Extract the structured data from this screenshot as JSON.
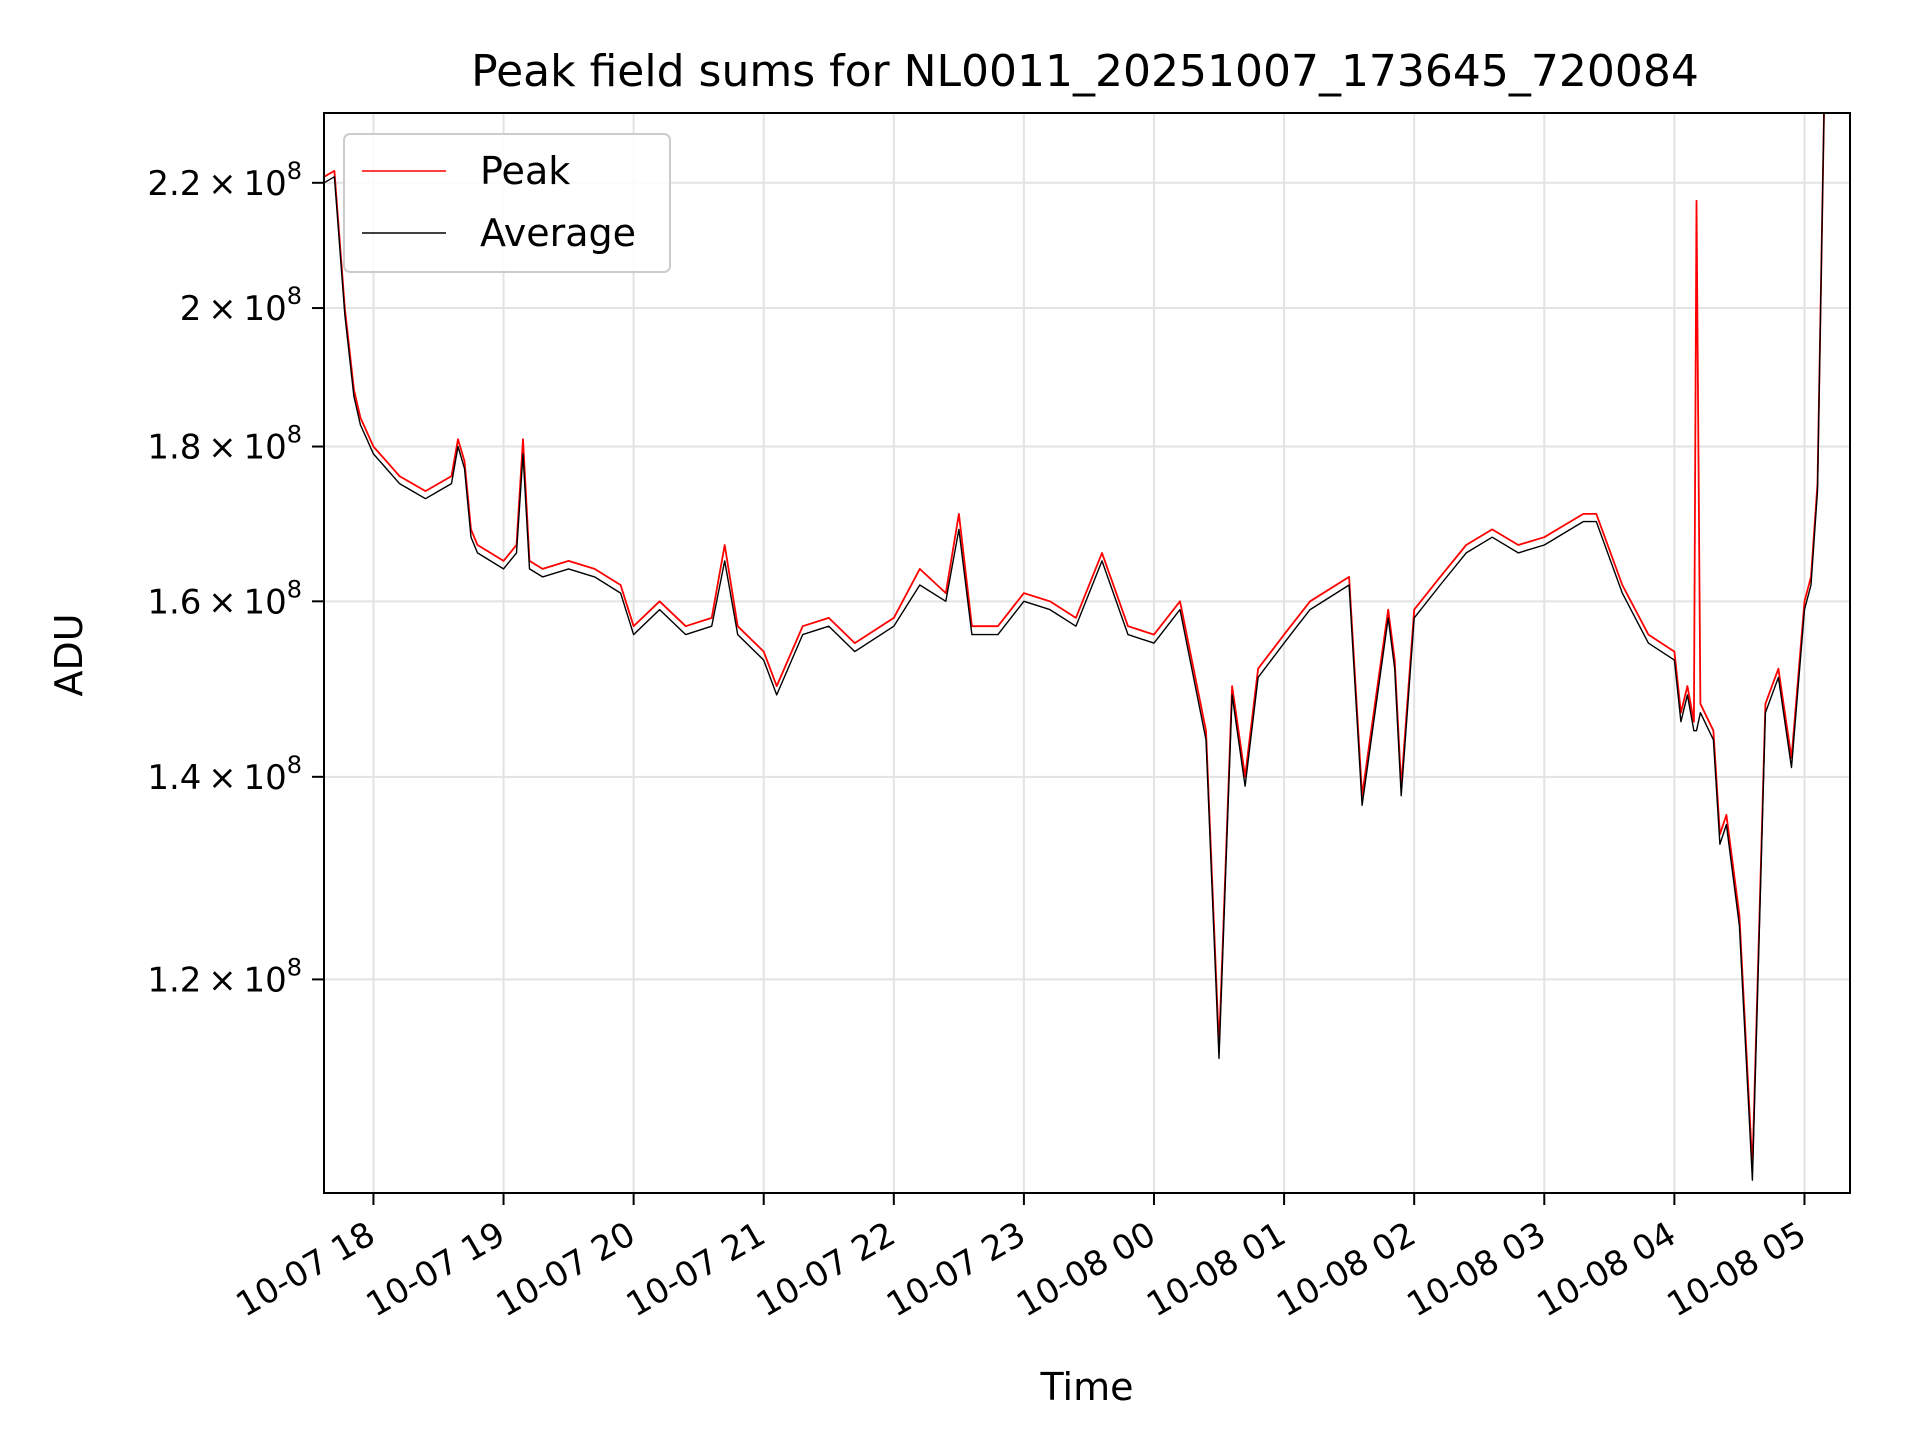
{
  "chart_data": {
    "type": "line",
    "title": "Peak field sums for NL0011_20251007_173645_720084",
    "xlabel": "Time",
    "ylabel": "ADU",
    "yscale": "log",
    "ylim": [
      102000000,
      232000000
    ],
    "xlim": [
      17.62,
      29.35
    ],
    "grid": true,
    "legend_position": "top-left",
    "x_ticks": [
      {
        "value": 18,
        "label": "10-07 18"
      },
      {
        "value": 19,
        "label": "10-07 19"
      },
      {
        "value": 20,
        "label": "10-07 20"
      },
      {
        "value": 21,
        "label": "10-07 21"
      },
      {
        "value": 22,
        "label": "10-07 22"
      },
      {
        "value": 23,
        "label": "10-07 23"
      },
      {
        "value": 24,
        "label": "10-08 00"
      },
      {
        "value": 25,
        "label": "10-08 01"
      },
      {
        "value": 26,
        "label": "10-08 02"
      },
      {
        "value": 27,
        "label": "10-08 03"
      },
      {
        "value": 28,
        "label": "10-08 04"
      },
      {
        "value": 29,
        "label": "10-08 05"
      }
    ],
    "y_ticks": [
      {
        "value": 120000000,
        "mantissa": "1.2",
        "exp": "8"
      },
      {
        "value": 140000000,
        "mantissa": "1.4",
        "exp": "8"
      },
      {
        "value": 160000000,
        "mantissa": "1.6",
        "exp": "8"
      },
      {
        "value": 180000000,
        "mantissa": "1.8",
        "exp": "8"
      },
      {
        "value": 200000000,
        "mantissa": "2",
        "exp": "8"
      },
      {
        "value": 220000000,
        "mantissa": "2.2",
        "exp": "8"
      }
    ],
    "tick_base": "10",
    "series": [
      {
        "name": "Peak",
        "color": "#ff0000",
        "x": [
          17.62,
          17.7,
          17.75,
          17.78,
          17.85,
          17.9,
          17.95,
          18.0,
          18.1,
          18.2,
          18.3,
          18.4,
          18.5,
          18.6,
          18.65,
          18.7,
          18.75,
          18.8,
          18.9,
          19.0,
          19.1,
          19.15,
          19.2,
          19.3,
          19.5,
          19.7,
          19.9,
          20.0,
          20.2,
          20.4,
          20.6,
          20.7,
          20.8,
          21.0,
          21.1,
          21.3,
          21.5,
          21.7,
          22.0,
          22.2,
          22.4,
          22.5,
          22.6,
          22.8,
          23.0,
          23.2,
          23.4,
          23.6,
          23.8,
          24.0,
          24.2,
          24.4,
          24.5,
          24.6,
          24.7,
          24.8,
          25.0,
          25.1,
          25.2,
          25.5,
          25.6,
          25.8,
          25.85,
          25.9,
          26.0,
          26.2,
          26.4,
          26.6,
          26.8,
          27.0,
          27.2,
          27.3,
          27.4,
          27.6,
          27.8,
          28.0,
          28.05,
          28.1,
          28.15,
          28.17,
          28.2,
          28.3,
          28.35,
          28.4,
          28.5,
          28.6,
          28.7,
          28.8,
          28.9,
          29.0,
          29.05,
          29.1,
          29.15
        ],
        "values": [
          221000000,
          222000000,
          208000000,
          200000000,
          188000000,
          184000000,
          182000000,
          180000000,
          178000000,
          176000000,
          175000000,
          174000000,
          175000000,
          176000000,
          181000000,
          178000000,
          169000000,
          167000000,
          166000000,
          165000000,
          167000000,
          181000000,
          165000000,
          164000000,
          165000000,
          164000000,
          162000000,
          157000000,
          160000000,
          157000000,
          158000000,
          167000000,
          157000000,
          154000000,
          150000000,
          157000000,
          158000000,
          155000000,
          158000000,
          164000000,
          161000000,
          171000000,
          157000000,
          157000000,
          161000000,
          160000000,
          158000000,
          166000000,
          157000000,
          156000000,
          160000000,
          145000000,
          114000000,
          150000000,
          140000000,
          152000000,
          156000000,
          158000000,
          160000000,
          163000000,
          138000000,
          159000000,
          153000000,
          139000000,
          159000000,
          163000000,
          167000000,
          169000000,
          167000000,
          168000000,
          170000000,
          171000000,
          171000000,
          162000000,
          156000000,
          154000000,
          147000000,
          150000000,
          146000000,
          217000000,
          148000000,
          145000000,
          134000000,
          136000000,
          126000000,
          104000000,
          148000000,
          152000000,
          142000000,
          160000000,
          163000000,
          175000000,
          232000000
        ]
      },
      {
        "name": "Average",
        "color": "#000000",
        "x": [
          17.62,
          17.7,
          17.75,
          17.78,
          17.85,
          17.9,
          17.95,
          18.0,
          18.1,
          18.2,
          18.3,
          18.4,
          18.5,
          18.6,
          18.65,
          18.7,
          18.75,
          18.8,
          18.9,
          19.0,
          19.1,
          19.15,
          19.2,
          19.3,
          19.5,
          19.7,
          19.9,
          20.0,
          20.2,
          20.4,
          20.6,
          20.7,
          20.8,
          21.0,
          21.1,
          21.3,
          21.5,
          21.7,
          22.0,
          22.2,
          22.4,
          22.5,
          22.6,
          22.8,
          23.0,
          23.2,
          23.4,
          23.6,
          23.8,
          24.0,
          24.2,
          24.4,
          24.5,
          24.6,
          24.7,
          24.8,
          25.0,
          25.1,
          25.2,
          25.5,
          25.6,
          25.8,
          25.85,
          25.9,
          26.0,
          26.2,
          26.4,
          26.6,
          26.8,
          27.0,
          27.2,
          27.3,
          27.4,
          27.6,
          27.8,
          28.0,
          28.05,
          28.1,
          28.15,
          28.17,
          28.2,
          28.3,
          28.35,
          28.4,
          28.5,
          28.6,
          28.7,
          28.8,
          28.9,
          29.0,
          29.05,
          29.1,
          29.15
        ],
        "values": [
          220000000,
          221000000,
          207000000,
          199000000,
          187000000,
          183000000,
          181000000,
          179000000,
          177000000,
          175000000,
          174000000,
          173000000,
          174000000,
          175000000,
          180000000,
          177000000,
          168000000,
          166000000,
          165000000,
          164000000,
          166000000,
          179000000,
          164000000,
          163000000,
          164000000,
          163000000,
          161000000,
          156000000,
          159000000,
          156000000,
          157000000,
          165000000,
          156000000,
          153000000,
          149000000,
          156000000,
          157000000,
          154000000,
          157000000,
          162000000,
          160000000,
          169000000,
          156000000,
          156000000,
          160000000,
          159000000,
          157000000,
          165000000,
          156000000,
          155000000,
          159000000,
          144000000,
          113000000,
          149000000,
          139000000,
          151000000,
          155000000,
          157000000,
          159000000,
          162000000,
          137000000,
          158000000,
          152000000,
          138000000,
          158000000,
          162000000,
          166000000,
          168000000,
          166000000,
          167000000,
          169000000,
          170000000,
          170000000,
          161000000,
          155000000,
          153000000,
          146000000,
          149000000,
          145000000,
          145000000,
          147000000,
          144000000,
          133000000,
          135000000,
          125000000,
          103000000,
          147000000,
          151000000,
          141000000,
          159000000,
          162000000,
          174000000,
          232000000
        ]
      }
    ]
  }
}
